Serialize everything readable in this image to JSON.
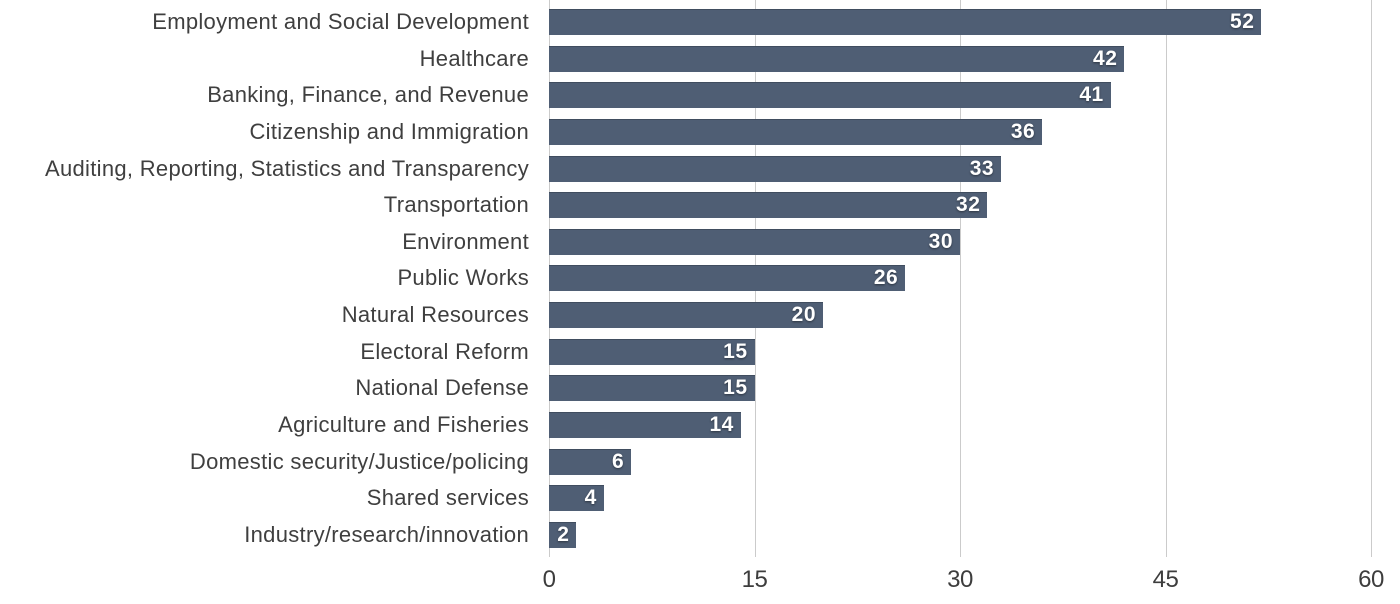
{
  "chart_data": {
    "type": "bar",
    "orientation": "horizontal",
    "title": "",
    "xlabel": "",
    "ylabel": "",
    "categories": [
      "Employment and Social Development",
      "Healthcare",
      "Banking, Finance, and Revenue",
      "Citizenship and Immigration",
      "Auditing, Reporting, Statistics and Transparency",
      "Transportation",
      "Environment",
      "Public Works",
      "Natural Resources",
      "Electoral Reform",
      "National Defense",
      "Agriculture and Fisheries",
      "Domestic security/Justice/policing",
      "Shared services",
      "Industry/research/innovation"
    ],
    "values": [
      52,
      42,
      41,
      36,
      33,
      32,
      30,
      26,
      20,
      15,
      15,
      14,
      6,
      4,
      2
    ],
    "value_labels": [
      "52",
      "42",
      "41",
      "36",
      "33",
      "32",
      "30",
      "26",
      "20",
      "15",
      "15",
      "14",
      "6",
      "4",
      "2"
    ],
    "xlim": [
      0,
      60
    ],
    "x_ticks": [
      0,
      15,
      30,
      45,
      60
    ],
    "x_tick_labels": [
      "0",
      "15",
      "30",
      "45",
      "60"
    ],
    "grid": "vertical gridlines at x ticks, full plot height",
    "legend": "none",
    "colors": {
      "bar": "#4f5e74",
      "value_label": "#ffffff",
      "category_label": "#3f3f3f",
      "tick_label": "#3d3d3d",
      "gridline": "#cbcbcb",
      "background": "#ffffff"
    }
  }
}
